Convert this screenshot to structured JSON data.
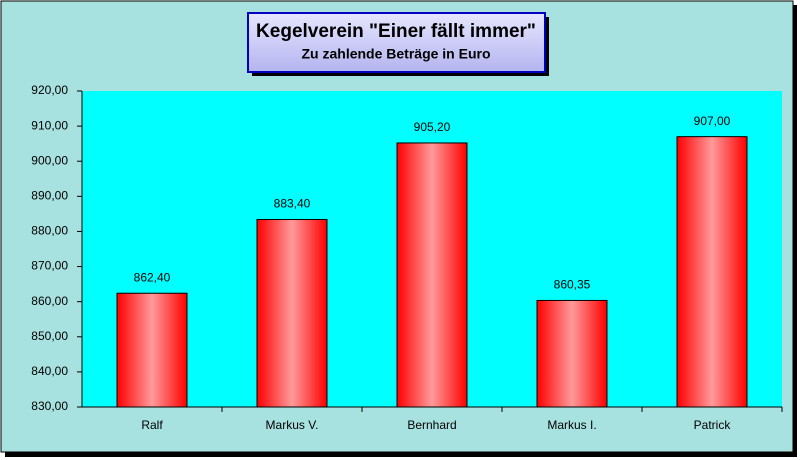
{
  "chart_data": {
    "type": "bar",
    "title": "Kegelverein \"Einer fällt immer\"",
    "subtitle": "Zu zahlende Beträge in Euro",
    "categories": [
      "Ralf",
      "Markus V.",
      "Bernhard",
      "Markus I.",
      "Patrick"
    ],
    "values": [
      862.4,
      883.4,
      905.2,
      860.35,
      907.0
    ],
    "value_labels": [
      "862,40",
      "883,40",
      "905,20",
      "860,35",
      "907,00"
    ],
    "color": "#ff0000",
    "ylim": [
      830,
      920
    ],
    "yticks": [
      {
        "value": 830,
        "label": "830,00"
      },
      {
        "value": 840,
        "label": "840,00"
      },
      {
        "value": 850,
        "label": "850,00"
      },
      {
        "value": 860,
        "label": "860,00"
      },
      {
        "value": 870,
        "label": "870,00"
      },
      {
        "value": 880,
        "label": "880,00"
      },
      {
        "value": 890,
        "label": "890,00"
      },
      {
        "value": 900,
        "label": "900,00"
      },
      {
        "value": 910,
        "label": "910,00"
      },
      {
        "value": 920,
        "label": "920,00"
      }
    ],
    "grid": false
  }
}
